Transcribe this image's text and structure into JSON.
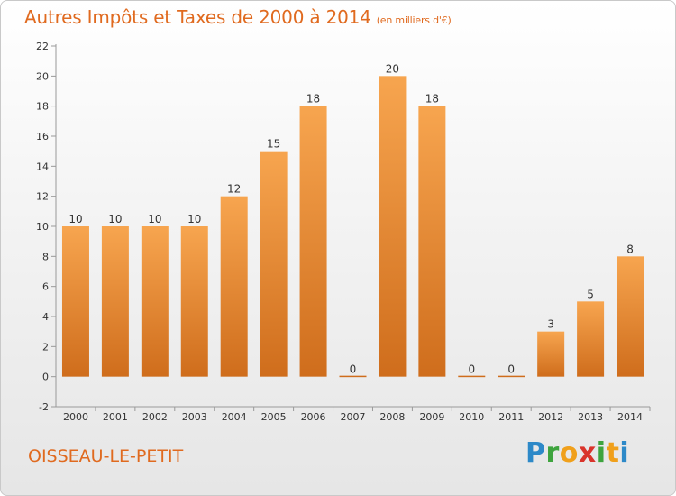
{
  "header": {
    "title": "Autres Impôts et Taxes de 2000 à 2014",
    "unit": "(en milliers d'€)"
  },
  "footer": {
    "commune": "OISSEAU-LE-PETIT",
    "logo": "Proxiti"
  },
  "colors": {
    "bar_light": "#f7a54f",
    "bar_dark": "#cf6d1c",
    "title": "#e06a1f"
  },
  "chart_data": {
    "type": "bar",
    "title": "Autres Impôts et Taxes de 2000 à 2014",
    "subtitle": "(en milliers d'€)",
    "xlabel": "",
    "ylabel": "",
    "categories": [
      "2000",
      "2001",
      "2002",
      "2003",
      "2004",
      "2005",
      "2006",
      "2007",
      "2008",
      "2009",
      "2010",
      "2011",
      "2012",
      "2013",
      "2014"
    ],
    "values": [
      10,
      10,
      10,
      10,
      12,
      15,
      18,
      0,
      20,
      18,
      0,
      0,
      3,
      5,
      8
    ],
    "ylim": [
      -2,
      22
    ],
    "yticks": [
      -2,
      0,
      2,
      4,
      6,
      8,
      10,
      12,
      14,
      16,
      18,
      20,
      22
    ],
    "grid": false,
    "legend": "none"
  }
}
